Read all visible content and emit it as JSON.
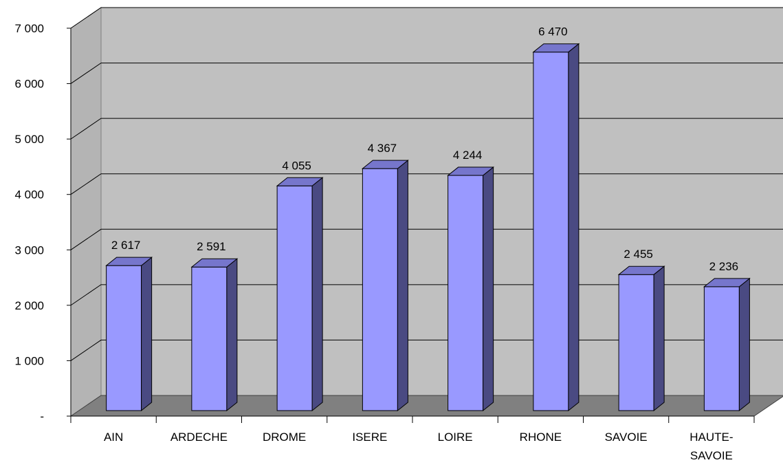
{
  "chart_data": {
    "type": "bar",
    "title": "",
    "xlabel": "",
    "ylabel": "",
    "categories": [
      [
        "AIN"
      ],
      [
        "ARDECHE"
      ],
      [
        "DROME"
      ],
      [
        "ISERE"
      ],
      [
        "LOIRE"
      ],
      [
        "RHONE"
      ],
      [
        "SAVOIE"
      ],
      [
        "HAUTE-",
        "SAVOIE"
      ]
    ],
    "values": [
      2617,
      2591,
      4055,
      4367,
      4244,
      6470,
      2455,
      2236
    ],
    "value_labels": [
      "2 617",
      "2 591",
      "4 055",
      "4 367",
      "4 244",
      "6 470",
      "2 455",
      "2 236"
    ],
    "ylim": [
      0,
      7000
    ],
    "yticks": [
      0,
      1000,
      2000,
      3000,
      4000,
      5000,
      6000,
      7000
    ],
    "ytick_labels": [
      "-",
      "1 000",
      "2 000",
      "3 000",
      "4 000",
      "5 000",
      "6 000",
      "7 000"
    ],
    "grid": true,
    "style": "3d-column",
    "colors": {
      "bar_front": "#9999ff",
      "bar_side": "#4a4a82",
      "bar_top": "#7676cc",
      "back_wall": "#c0c0c0",
      "side_wall": "#b4b4b4",
      "floor": "#808080",
      "grid": "#000000"
    }
  }
}
